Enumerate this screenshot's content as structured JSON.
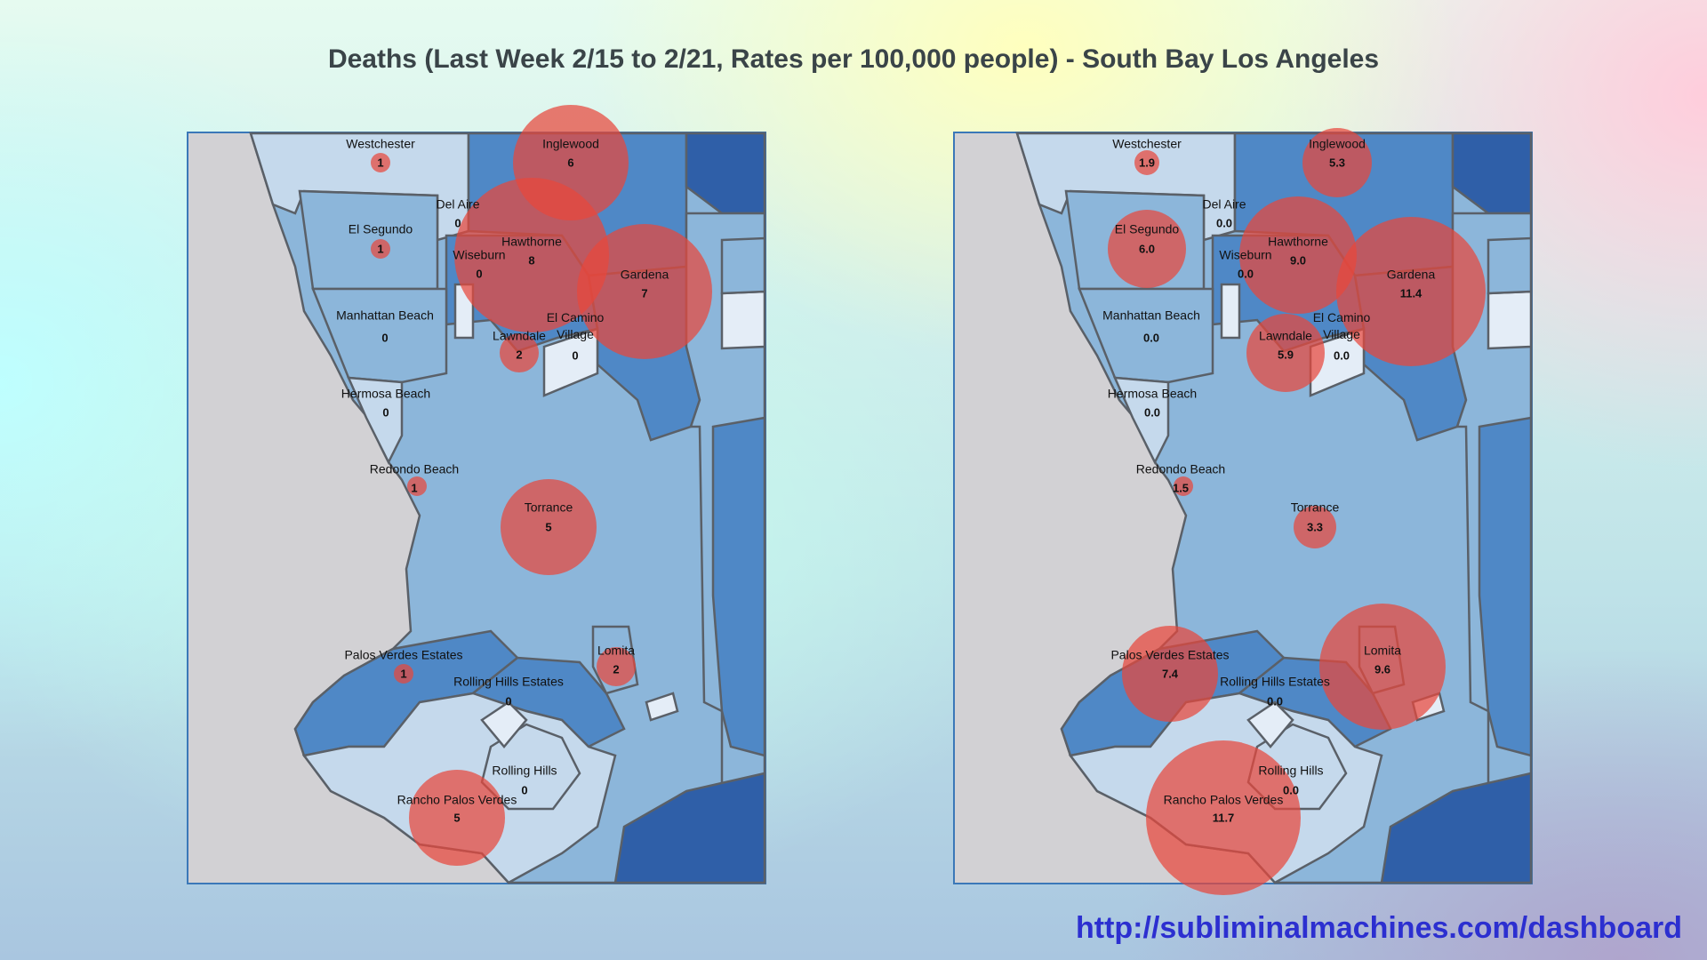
{
  "title": "Deaths (Last Week 2/15 to 2/21, Rates per 100,000 people) - South Bay Los Angeles",
  "url": "http://subliminalmachines.com/dashboard",
  "colors": {
    "bubble": "#e8463c",
    "dark_blue": "#2f5fa8",
    "mid_blue": "#4f88c6",
    "light_blue": "#8cb6da",
    "pale_blue": "#c5d9ec",
    "very_pale_blue": "#e4edf7",
    "land_outside": "#d2d1d4"
  },
  "maps": [
    {
      "metric": "counts",
      "places": [
        {
          "name": "Westchester",
          "value": "1"
        },
        {
          "name": "Inglewood",
          "value": "6"
        },
        {
          "name": "Del Aire",
          "value": "0"
        },
        {
          "name": "El Segundo",
          "value": "1"
        },
        {
          "name": "Hawthorne",
          "value": "8"
        },
        {
          "name": "Wiseburn",
          "value": "0"
        },
        {
          "name": "Gardena",
          "value": "7"
        },
        {
          "name": "Manhattan Beach",
          "value": "0"
        },
        {
          "name": "El Camino Village",
          "value": "0"
        },
        {
          "name": "Lawndale",
          "value": "2"
        },
        {
          "name": "Hermosa Beach",
          "value": "0"
        },
        {
          "name": "Redondo Beach",
          "value": "1"
        },
        {
          "name": "Torrance",
          "value": "5"
        },
        {
          "name": "Lomita",
          "value": "2"
        },
        {
          "name": "Palos Verdes Estates",
          "value": "1"
        },
        {
          "name": "Rolling Hills Estates",
          "value": "0"
        },
        {
          "name": "Rolling Hills",
          "value": "0"
        },
        {
          "name": "Rancho Palos Verdes",
          "value": "5"
        }
      ]
    },
    {
      "metric": "rates",
      "places": [
        {
          "name": "Westchester",
          "value": "1.9"
        },
        {
          "name": "Inglewood",
          "value": "5.3"
        },
        {
          "name": "Del Aire",
          "value": "0.0"
        },
        {
          "name": "El Segundo",
          "value": "6.0"
        },
        {
          "name": "Hawthorne",
          "value": "9.0"
        },
        {
          "name": "Wiseburn",
          "value": "0.0"
        },
        {
          "name": "Gardena",
          "value": "11.4"
        },
        {
          "name": "Manhattan Beach",
          "value": "0.0"
        },
        {
          "name": "El Camino Village",
          "value": "0.0"
        },
        {
          "name": "Lawndale",
          "value": "5.9"
        },
        {
          "name": "Hermosa Beach",
          "value": "0.0"
        },
        {
          "name": "Redondo Beach",
          "value": "1.5"
        },
        {
          "name": "Torrance",
          "value": "3.3"
        },
        {
          "name": "Lomita",
          "value": "9.6"
        },
        {
          "name": "Palos Verdes Estates",
          "value": "7.4"
        },
        {
          "name": "Rolling Hills Estates",
          "value": "0.0"
        },
        {
          "name": "Rolling Hills",
          "value": "0.0"
        },
        {
          "name": "Rancho Palos Verdes",
          "value": "11.7"
        }
      ]
    }
  ]
}
